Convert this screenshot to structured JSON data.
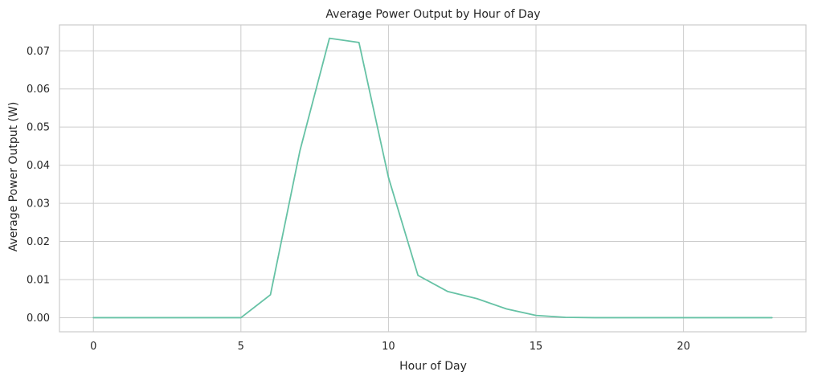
{
  "chart_data": {
    "type": "line",
    "title": "Average Power Output by Hour of Day",
    "xlabel": "Hour of Day",
    "ylabel": "Average Power Output (W)",
    "xlim": [
      -1.15,
      24.15
    ],
    "ylim": [
      -0.0037,
      0.0768
    ],
    "xticks": [
      0,
      5,
      10,
      15,
      20
    ],
    "yticks": [
      0.0,
      0.01,
      0.02,
      0.03,
      0.04,
      0.05,
      0.06,
      0.07
    ],
    "xtick_labels": [
      "0",
      "5",
      "10",
      "15",
      "20"
    ],
    "ytick_labels": [
      "0.00",
      "0.01",
      "0.02",
      "0.03",
      "0.04",
      "0.05",
      "0.06",
      "0.07"
    ],
    "grid": true,
    "series": [
      {
        "color": "#66c2a5",
        "x": [
          0,
          1,
          2,
          3,
          4,
          5,
          6,
          7,
          8,
          9,
          10,
          11,
          12,
          13,
          14,
          15,
          16,
          17,
          18,
          19,
          20,
          21,
          22,
          23
        ],
        "y": [
          0.0,
          0.0,
          0.0,
          0.0,
          0.0,
          0.0,
          0.006,
          0.0438,
          0.0733,
          0.0722,
          0.0368,
          0.0111,
          0.0069,
          0.005,
          0.0023,
          0.0006,
          0.0001,
          0.0,
          0.0,
          0.0,
          0.0,
          0.0,
          0.0,
          0.0
        ]
      }
    ]
  }
}
